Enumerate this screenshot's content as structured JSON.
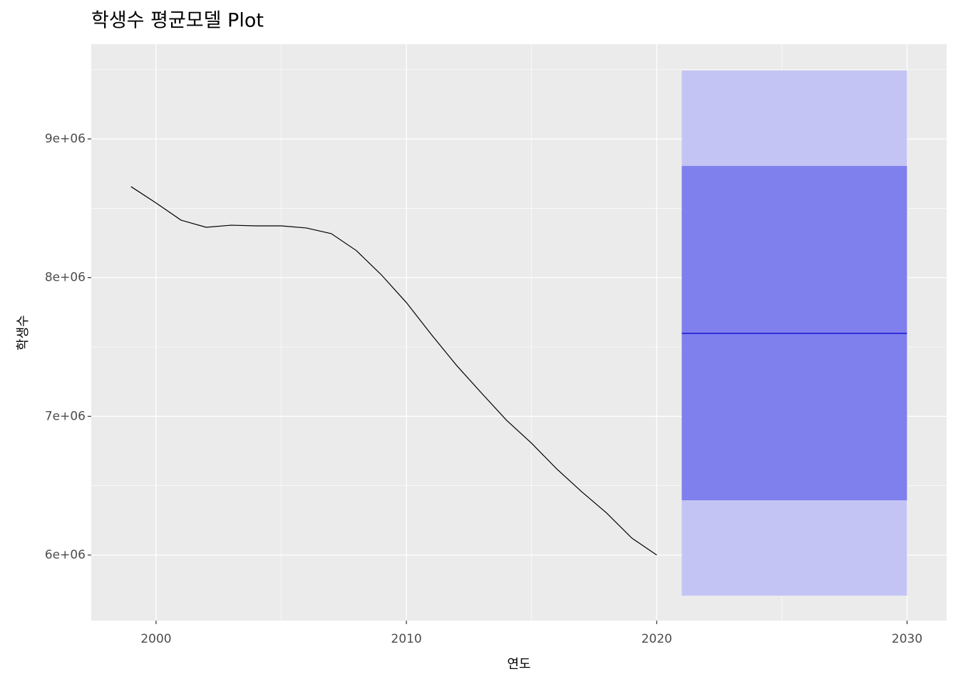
{
  "chart_data": {
    "type": "line",
    "title": "학생수 평균모델 Plot",
    "x_label": "연도",
    "y_label": "학생수",
    "x": [
      1999,
      2000,
      2001,
      2002,
      2003,
      2004,
      2005,
      2006,
      2007,
      2008,
      2009,
      2010,
      2011,
      2012,
      2013,
      2014,
      2015,
      2016,
      2017,
      2018,
      2019,
      2020
    ],
    "series": [
      {
        "color": "#000000",
        "values": [
          8656000,
          8538000,
          8414000,
          8363000,
          8378000,
          8373000,
          8373000,
          8358000,
          8317000,
          8195000,
          8020000,
          7820000,
          7589000,
          7368000,
          7168000,
          6972000,
          6806000,
          6622000,
          6457000,
          6303000,
          6123000,
          6000000
        ]
      }
    ],
    "forecast": {
      "start": 2021,
      "end": 2030,
      "mean": 7598000,
      "lo80": 6395000,
      "hi80": 8805000,
      "lo95": 5707000,
      "hi95": 9493000,
      "mean_color": "#0000cc",
      "band80_color": "#7f7fee",
      "band95_color": "#c4c4f4"
    },
    "xlim": [
      1997.41,
      2031.58
    ],
    "ylim": [
      5527500,
      9683000
    ],
    "xticks": [
      2000,
      2010,
      2020,
      2030
    ],
    "yticks": [
      {
        "value": 6000000,
        "label": "6e+06"
      },
      {
        "value": 7000000,
        "label": "7e+06"
      },
      {
        "value": 8000000,
        "label": "8e+06"
      },
      {
        "value": 9000000,
        "label": "9e+06"
      }
    ],
    "grid": true
  }
}
